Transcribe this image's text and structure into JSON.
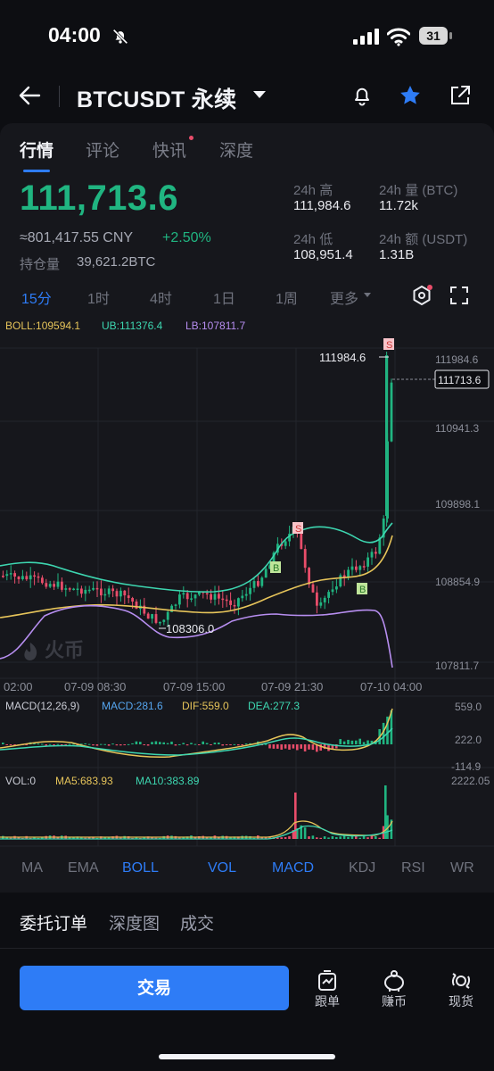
{
  "status_bar": {
    "time": "04:00",
    "battery": "31"
  },
  "header": {
    "symbol": "BTCUSDT 永续"
  },
  "tabs": [
    {
      "label": "行情"
    },
    {
      "label": "评论"
    },
    {
      "label": "快讯"
    },
    {
      "label": "深度"
    }
  ],
  "ticker": {
    "price": "111,713.6",
    "cny": "≈801,417.55 CNY",
    "change": "+2.50%",
    "open_interest_label": "持仓量",
    "open_interest": "39,621.2BTC",
    "stats": [
      {
        "label": "24h 高",
        "value": "111,984.6"
      },
      {
        "label": "24h 量 (BTC)",
        "value": "11.72k"
      },
      {
        "label": "24h 低",
        "value": "108,951.4"
      },
      {
        "label": "24h 额 (USDT)",
        "value": "1.31B"
      }
    ]
  },
  "timeframes": [
    "15分",
    "1时",
    "4时",
    "1日",
    "1周",
    "更多"
  ],
  "chart": {
    "boll": "BOLL:109594.1",
    "ub": "UB:111376.4",
    "lb": "LB:107811.7",
    "y_ticks": [
      "111984.6",
      "110941.3",
      "109898.1",
      "108854.9",
      "107811.7"
    ],
    "current_price_tag": "111713.6",
    "high_annot": "111984.6",
    "low_annot": "108306.0",
    "watermark": "火币",
    "x_ticks": [
      "02:00",
      "07-09 08:30",
      "07-09 15:00",
      "07-09 21:30",
      "07-10 04:00"
    ],
    "markers": [
      "S",
      "S",
      "B",
      "B"
    ],
    "macd": {
      "label": "MACD(12,26,9)",
      "macd": "MACD:281.6",
      "dif": "DIF:559.0",
      "dea": "DEA:277.3",
      "ticks": [
        "559.0",
        "222.0",
        "-114.9"
      ]
    },
    "vol": {
      "label": "VOL:0",
      "ma5": "MA5:683.93",
      "ma10": "MA10:383.89",
      "tick": "2222.05"
    }
  },
  "indicators": [
    {
      "label": "MA"
    },
    {
      "label": "EMA"
    },
    {
      "label": "BOLL"
    },
    {
      "label": "VOL"
    },
    {
      "label": "MACD"
    },
    {
      "label": "KDJ"
    },
    {
      "label": "RSI"
    },
    {
      "label": "WR"
    }
  ],
  "bottom_tabs": [
    "委托订单",
    "深度图",
    "成交"
  ],
  "actions": {
    "trade": "交易",
    "copy": "跟单",
    "earn": "赚币",
    "spot": "现货"
  },
  "colors": {
    "up": "#20b581",
    "down": "#e84d6a",
    "accent": "#2e7cf6"
  }
}
